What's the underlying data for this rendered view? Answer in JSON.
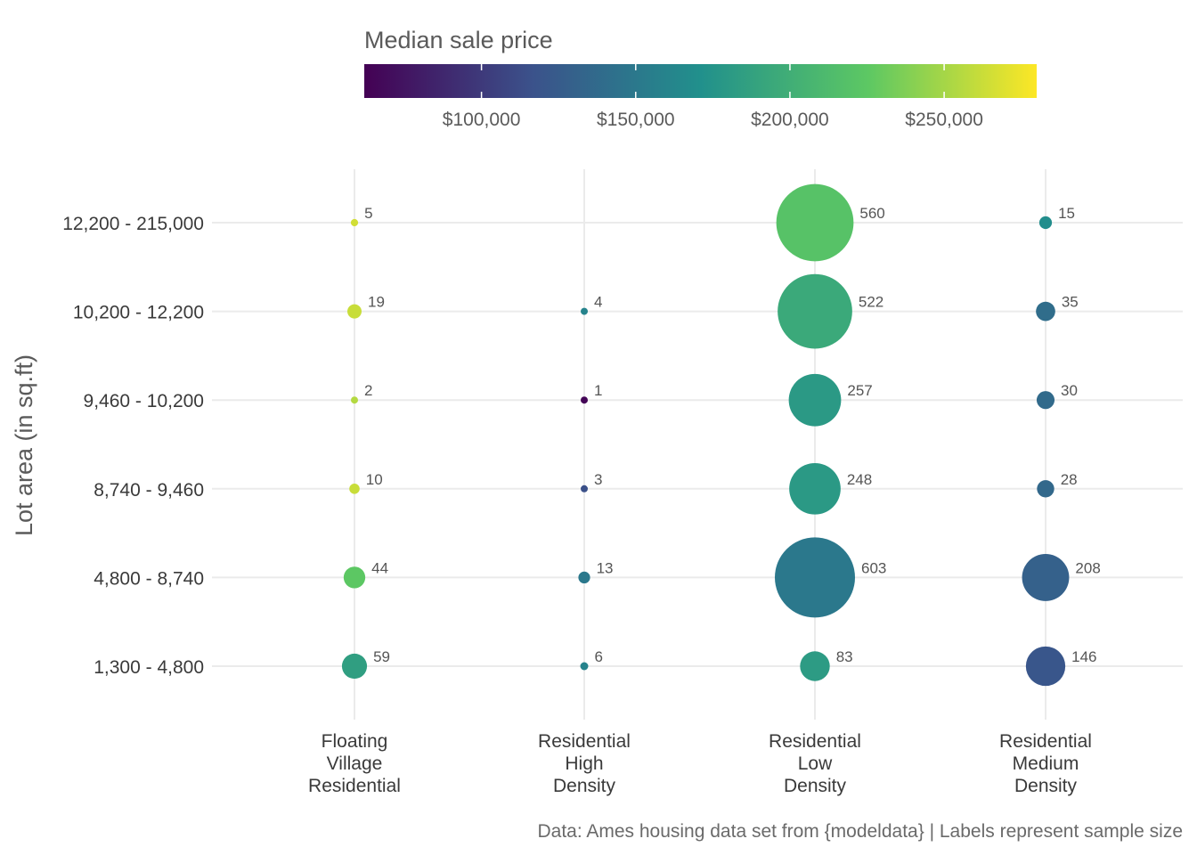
{
  "chart_data": {
    "type": "scatter",
    "ylabel": "Lot area (in sq.ft)",
    "xlabel": "",
    "caption": "Data: Ames housing data set from {modeldata} | Labels represent sample size",
    "x_categories": [
      [
        "Floating",
        "Village",
        "Residential"
      ],
      [
        "Residential",
        "High",
        "Density"
      ],
      [
        "Residential",
        "Low",
        "Density"
      ],
      [
        "Residential",
        "Medium",
        "Density"
      ]
    ],
    "y_categories": [
      "1,300 - 4,800",
      "4,800 - 8,740",
      "8,740 - 9,460",
      "9,460 - 10,200",
      "10,200 - 12,200",
      "12,200 - 215,000"
    ],
    "color_legend": {
      "title": "Median sale price",
      "min": 62000,
      "max": 280000,
      "ticks": [
        100000,
        150000,
        200000,
        250000
      ],
      "tick_labels": [
        "$100,000",
        "$150,000",
        "$200,000",
        "$250,000"
      ],
      "gradient": [
        "#440154",
        "#3b528b",
        "#21908c",
        "#5dc863",
        "#fde725"
      ]
    },
    "points": [
      {
        "x": 0,
        "y": 5,
        "n": 5,
        "label": "5",
        "price": 265000
      },
      {
        "x": 0,
        "y": 4,
        "n": 19,
        "label": "19",
        "price": 262000
      },
      {
        "x": 0,
        "y": 3,
        "n": 2,
        "label": "2",
        "price": 255000
      },
      {
        "x": 0,
        "y": 2,
        "n": 10,
        "label": "10",
        "price": 262000
      },
      {
        "x": 0,
        "y": 1,
        "n": 44,
        "label": "44",
        "price": 225000
      },
      {
        "x": 0,
        "y": 0,
        "n": 59,
        "label": "59",
        "price": 185000
      },
      {
        "x": 1,
        "y": 4,
        "n": 4,
        "label": "4",
        "price": 160000
      },
      {
        "x": 1,
        "y": 3,
        "n": 1,
        "label": "1",
        "price": 65000
      },
      {
        "x": 1,
        "y": 2,
        "n": 3,
        "label": "3",
        "price": 115000
      },
      {
        "x": 1,
        "y": 1,
        "n": 13,
        "label": "13",
        "price": 150000
      },
      {
        "x": 1,
        "y": 0,
        "n": 6,
        "label": "6",
        "price": 160000
      },
      {
        "x": 2,
        "y": 5,
        "n": 560,
        "label": "560",
        "price": 220000
      },
      {
        "x": 2,
        "y": 4,
        "n": 522,
        "label": "522",
        "price": 195000
      },
      {
        "x": 2,
        "y": 3,
        "n": 257,
        "label": "257",
        "price": 180000
      },
      {
        "x": 2,
        "y": 2,
        "n": 248,
        "label": "248",
        "price": 180000
      },
      {
        "x": 2,
        "y": 1,
        "n": 603,
        "label": "603",
        "price": 150000
      },
      {
        "x": 2,
        "y": 0,
        "n": 83,
        "label": "83",
        "price": 182000
      },
      {
        "x": 3,
        "y": 5,
        "n": 15,
        "label": "15",
        "price": 168000
      },
      {
        "x": 3,
        "y": 4,
        "n": 35,
        "label": "35",
        "price": 140000
      },
      {
        "x": 3,
        "y": 3,
        "n": 30,
        "label": "30",
        "price": 138000
      },
      {
        "x": 3,
        "y": 2,
        "n": 28,
        "label": "28",
        "price": 136000
      },
      {
        "x": 3,
        "y": 1,
        "n": 208,
        "label": "208",
        "price": 130000
      },
      {
        "x": 3,
        "y": 0,
        "n": 146,
        "label": "146",
        "price": 120000
      }
    ]
  }
}
